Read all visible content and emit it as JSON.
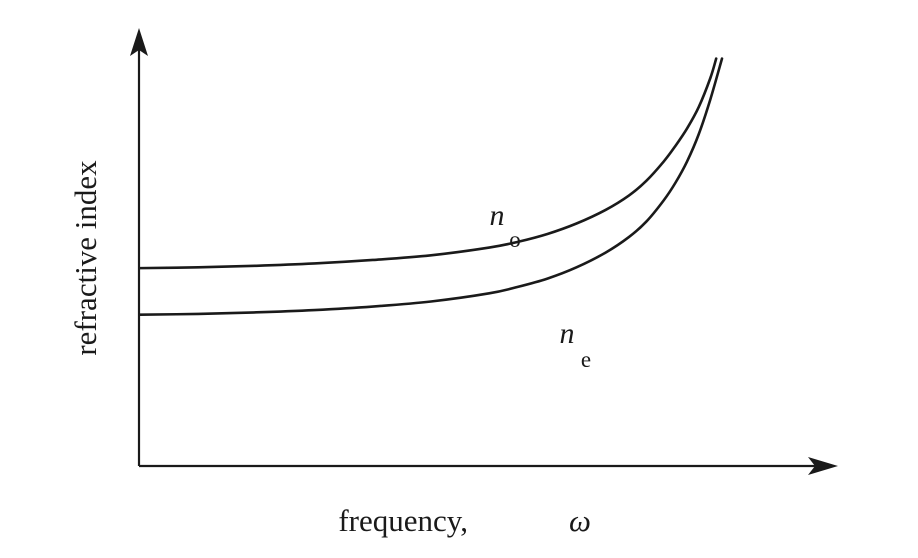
{
  "chart_data": {
    "type": "line",
    "xlabel": "frequency,",
    "xlabel_symbol": "ω",
    "ylabel": "refractive index",
    "ticks": "none",
    "grid": false,
    "series": [
      {
        "name_base": "n",
        "name_sub": "o",
        "x": [
          0.0,
          0.1,
          0.2,
          0.3,
          0.4,
          0.5,
          0.6,
          0.65,
          0.7,
          0.75,
          0.8,
          0.84,
          0.87,
          0.9,
          0.92,
          0.94,
          0.96,
          0.98,
          0.99
        ],
        "y": [
          0.51,
          0.512,
          0.516,
          0.522,
          0.531,
          0.543,
          0.563,
          0.578,
          0.598,
          0.625,
          0.66,
          0.697,
          0.735,
          0.785,
          0.825,
          0.87,
          0.925,
          1.0,
          1.05
        ]
      },
      {
        "name_base": "n",
        "name_sub": "e",
        "x": [
          0.0,
          0.1,
          0.2,
          0.3,
          0.4,
          0.5,
          0.6,
          0.65,
          0.7,
          0.75,
          0.8,
          0.84,
          0.87,
          0.9,
          0.92,
          0.94,
          0.96,
          0.98,
          1.0
        ],
        "y": [
          0.39,
          0.392,
          0.396,
          0.402,
          0.411,
          0.424,
          0.445,
          0.462,
          0.483,
          0.512,
          0.55,
          0.59,
          0.63,
          0.685,
          0.73,
          0.785,
          0.855,
          0.945,
          1.05
        ]
      }
    ],
    "colors": {
      "line": "#1a1a1a",
      "background": "#ffffff"
    }
  }
}
